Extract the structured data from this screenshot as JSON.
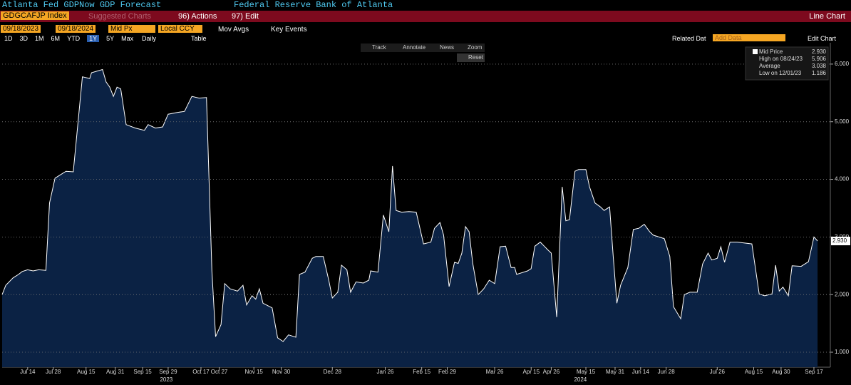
{
  "header": {
    "title": "Atlanta Fed GDPNow GDP Forecast",
    "source": "Federal Reserve Bank of Atlanta"
  },
  "toolbar": {
    "ticker": "GDGCAFJP Index",
    "suggested": "Suggested Charts",
    "actions": "96) Actions",
    "edit": "97) Edit",
    "view": "Line Chart"
  },
  "settings": {
    "start": "09/18/2023",
    "end": "09/18/2024",
    "price": "Mid Px",
    "currency": "Local CCY",
    "mov_avgs": "Mov Avgs",
    "key_events": "Key Events"
  },
  "ranges": [
    "1D",
    "3D",
    "1M",
    "6M",
    "YTD",
    "1Y",
    "5Y",
    "Max"
  ],
  "active_range": 5,
  "frequency": "Daily",
  "table": "Table",
  "related": "Related Dat",
  "add_data": "Add Data",
  "edit_chart": "Edit Chart",
  "chart_tools": [
    "Track",
    "Annotate",
    "News",
    "Zoom",
    "Reset"
  ],
  "legend": {
    "last_value": "2.930",
    "high": "High on 08/24/23",
    "high_value": "5.906",
    "average": "Average",
    "average_value": "3.038",
    "low": "Low on 12/01/23",
    "low_value": "1.186"
  },
  "chart_data": {
    "type": "area",
    "grid": true,
    "xlim": [
      "2023-06-30",
      "2024-09-26"
    ],
    "ylim": [
      0.74,
      6.37
    ],
    "yticks": [
      {
        "value": 1,
        "label": "1.000"
      },
      {
        "value": 2,
        "label": "2.000"
      },
      {
        "value": 3,
        "label": "3.000"
      },
      {
        "value": 4,
        "label": "4.000"
      },
      {
        "value": 5,
        "label": "5.000"
      },
      {
        "value": 6,
        "label": "6.000"
      }
    ],
    "xticks": [
      {
        "value": "2023-07-14",
        "label": "Jul 14"
      },
      {
        "value": "2023-07-28",
        "label": "Jul 28"
      },
      {
        "value": "2023-08-15",
        "label": "Aug 15"
      },
      {
        "value": "2023-08-31",
        "label": "Aug 31"
      },
      {
        "value": "2023-09-15",
        "label": "Sep 15"
      },
      {
        "value": "2023-09-29",
        "label": "Sep 29"
      },
      {
        "value": "2023-10-17",
        "label": "Oct 17"
      },
      {
        "value": "2023-10-27",
        "label": "Oct 27"
      },
      {
        "value": "2023-11-15",
        "label": "Nov 15"
      },
      {
        "value": "2023-11-30",
        "label": "Nov 30"
      },
      {
        "value": "2023-12-28",
        "label": "Dec 28"
      },
      {
        "value": "2024-01-26",
        "label": "Jan 26"
      },
      {
        "value": "2024-02-15",
        "label": "Feb 15"
      },
      {
        "value": "2024-02-29",
        "label": "Feb 29"
      },
      {
        "value": "2024-03-26",
        "label": "Mar 26"
      },
      {
        "value": "2024-04-15",
        "label": "Apr 15"
      },
      {
        "value": "2024-04-26",
        "label": "Apr 26"
      },
      {
        "value": "2024-05-15",
        "label": "May 15"
      },
      {
        "value": "2024-05-31",
        "label": "May 31"
      },
      {
        "value": "2024-06-14",
        "label": "Jun 14"
      },
      {
        "value": "2024-06-28",
        "label": "Jun 28"
      },
      {
        "value": "2024-07-26",
        "label": "Jul 26"
      },
      {
        "value": "2024-08-15",
        "label": "Aug 15"
      },
      {
        "value": "2024-08-30",
        "label": "Aug 30"
      },
      {
        "value": "2024-09-17",
        "label": "Sep 17"
      }
    ],
    "year_labels": [
      {
        "value": "2023-09-28",
        "label": "2023"
      },
      {
        "value": "2024-05-12",
        "label": "2024"
      }
    ],
    "x": [
      "2023-06-30",
      "2023-07-02",
      "2023-07-06",
      "2023-07-09",
      "2023-07-11",
      "2023-07-14",
      "2023-07-17",
      "2023-07-20",
      "2023-07-24",
      "2023-07-26",
      "2023-07-29",
      "2023-08-01",
      "2023-08-04",
      "2023-08-08",
      "2023-08-13",
      "2023-08-17",
      "2023-08-18",
      "2023-08-24",
      "2023-08-26",
      "2023-08-28",
      "2023-08-30",
      "2023-09-01",
      "2023-09-03",
      "2023-09-06",
      "2023-09-11",
      "2023-09-16",
      "2023-09-18",
      "2023-09-22",
      "2023-09-26",
      "2023-09-29",
      "2023-10-04",
      "2023-10-08",
      "2023-10-12",
      "2023-10-16",
      "2023-10-20",
      "2023-10-23",
      "2023-10-25",
      "2023-10-28",
      "2023-10-30",
      "2023-11-02",
      "2023-11-06",
      "2023-11-09",
      "2023-11-11",
      "2023-11-14",
      "2023-11-16",
      "2023-11-18",
      "2023-11-20",
      "2023-11-25",
      "2023-11-28",
      "2023-12-01",
      "2023-12-04",
      "2023-12-08",
      "2023-12-10",
      "2023-12-13",
      "2023-12-17",
      "2023-12-19",
      "2023-12-23",
      "2023-12-26",
      "2023-12-28",
      "2023-12-31",
      "2024-01-02",
      "2024-01-05",
      "2024-01-07",
      "2024-01-10",
      "2024-01-14",
      "2024-01-17",
      "2024-01-18",
      "2024-01-22",
      "2024-01-25",
      "2024-01-28",
      "2024-01-30",
      "2024-02-01",
      "2024-02-04",
      "2024-02-08",
      "2024-02-12",
      "2024-02-16",
      "2024-02-20",
      "2024-02-22",
      "2024-02-25",
      "2024-02-27",
      "2024-03-01",
      "2024-03-04",
      "2024-03-06",
      "2024-03-08",
      "2024-03-10",
      "2024-03-12",
      "2024-03-14",
      "2024-03-17",
      "2024-03-20",
      "2024-03-23",
      "2024-03-26",
      "2024-03-29",
      "2024-04-01",
      "2024-04-04",
      "2024-04-06",
      "2024-04-07",
      "2024-04-13",
      "2024-04-15",
      "2024-04-17",
      "2024-04-20",
      "2024-04-24",
      "2024-04-26",
      "2024-04-29",
      "2024-05-02",
      "2024-05-04",
      "2024-05-06",
      "2024-05-09",
      "2024-05-11",
      "2024-05-15",
      "2024-05-17",
      "2024-05-20",
      "2024-05-23",
      "2024-05-25",
      "2024-05-28",
      "2024-05-30",
      "2024-06-01",
      "2024-06-03",
      "2024-06-07",
      "2024-06-10",
      "2024-06-13",
      "2024-06-16",
      "2024-06-19",
      "2024-06-21",
      "2024-06-27",
      "2024-06-30",
      "2024-07-02",
      "2024-07-06",
      "2024-07-08",
      "2024-07-11",
      "2024-07-15",
      "2024-07-18",
      "2024-07-21",
      "2024-07-23",
      "2024-07-26",
      "2024-07-28",
      "2024-07-30",
      "2024-08-02",
      "2024-08-06",
      "2024-08-14",
      "2024-08-18",
      "2024-08-21",
      "2024-08-25",
      "2024-08-27",
      "2024-08-29",
      "2024-08-31",
      "2024-09-03",
      "2024-09-05",
      "2024-09-10",
      "2024-09-14",
      "2024-09-17",
      "2024-09-19"
    ],
    "series": [
      {
        "name": "Mid Price",
        "color": "#ffffff",
        "fill": "#0b2244",
        "values": [
          2.0,
          2.16,
          2.29,
          2.35,
          2.4,
          2.43,
          2.41,
          2.43,
          2.42,
          3.59,
          4.02,
          4.08,
          4.14,
          4.13,
          5.78,
          5.75,
          5.85,
          5.906,
          5.69,
          5.6,
          5.44,
          5.6,
          5.57,
          4.95,
          4.89,
          4.85,
          4.95,
          4.89,
          4.91,
          5.13,
          5.16,
          5.18,
          5.44,
          5.41,
          5.42,
          2.41,
          1.27,
          1.48,
          2.19,
          2.1,
          2.06,
          2.16,
          1.82,
          1.98,
          1.92,
          2.1,
          1.85,
          1.77,
          1.25,
          1.186,
          1.3,
          1.26,
          2.35,
          2.39,
          2.63,
          2.66,
          2.66,
          2.26,
          1.94,
          2.04,
          2.51,
          2.43,
          2.04,
          2.22,
          2.2,
          2.25,
          2.41,
          2.39,
          3.38,
          3.09,
          4.23,
          3.46,
          3.43,
          3.44,
          3.43,
          2.88,
          2.91,
          3.15,
          3.25,
          3.03,
          2.14,
          2.56,
          2.54,
          2.72,
          3.18,
          3.09,
          2.54,
          2.0,
          2.1,
          2.25,
          2.19,
          2.83,
          2.84,
          2.47,
          2.47,
          2.35,
          2.41,
          2.45,
          2.84,
          2.91,
          2.78,
          2.72,
          1.61,
          3.87,
          3.28,
          3.3,
          4.14,
          4.17,
          4.17,
          3.87,
          3.59,
          3.52,
          3.46,
          3.52,
          2.66,
          1.85,
          2.16,
          2.47,
          3.13,
          3.15,
          3.22,
          3.09,
          3.03,
          2.97,
          2.66,
          1.79,
          1.58,
          2.0,
          2.04,
          2.04,
          2.53,
          2.72,
          2.6,
          2.63,
          2.83,
          2.56,
          2.91,
          2.91,
          2.88,
          2.01,
          1.98,
          2.01,
          2.51,
          2.06,
          2.13,
          1.98,
          2.5,
          2.49,
          2.57,
          3.0,
          2.93
        ]
      }
    ]
  }
}
